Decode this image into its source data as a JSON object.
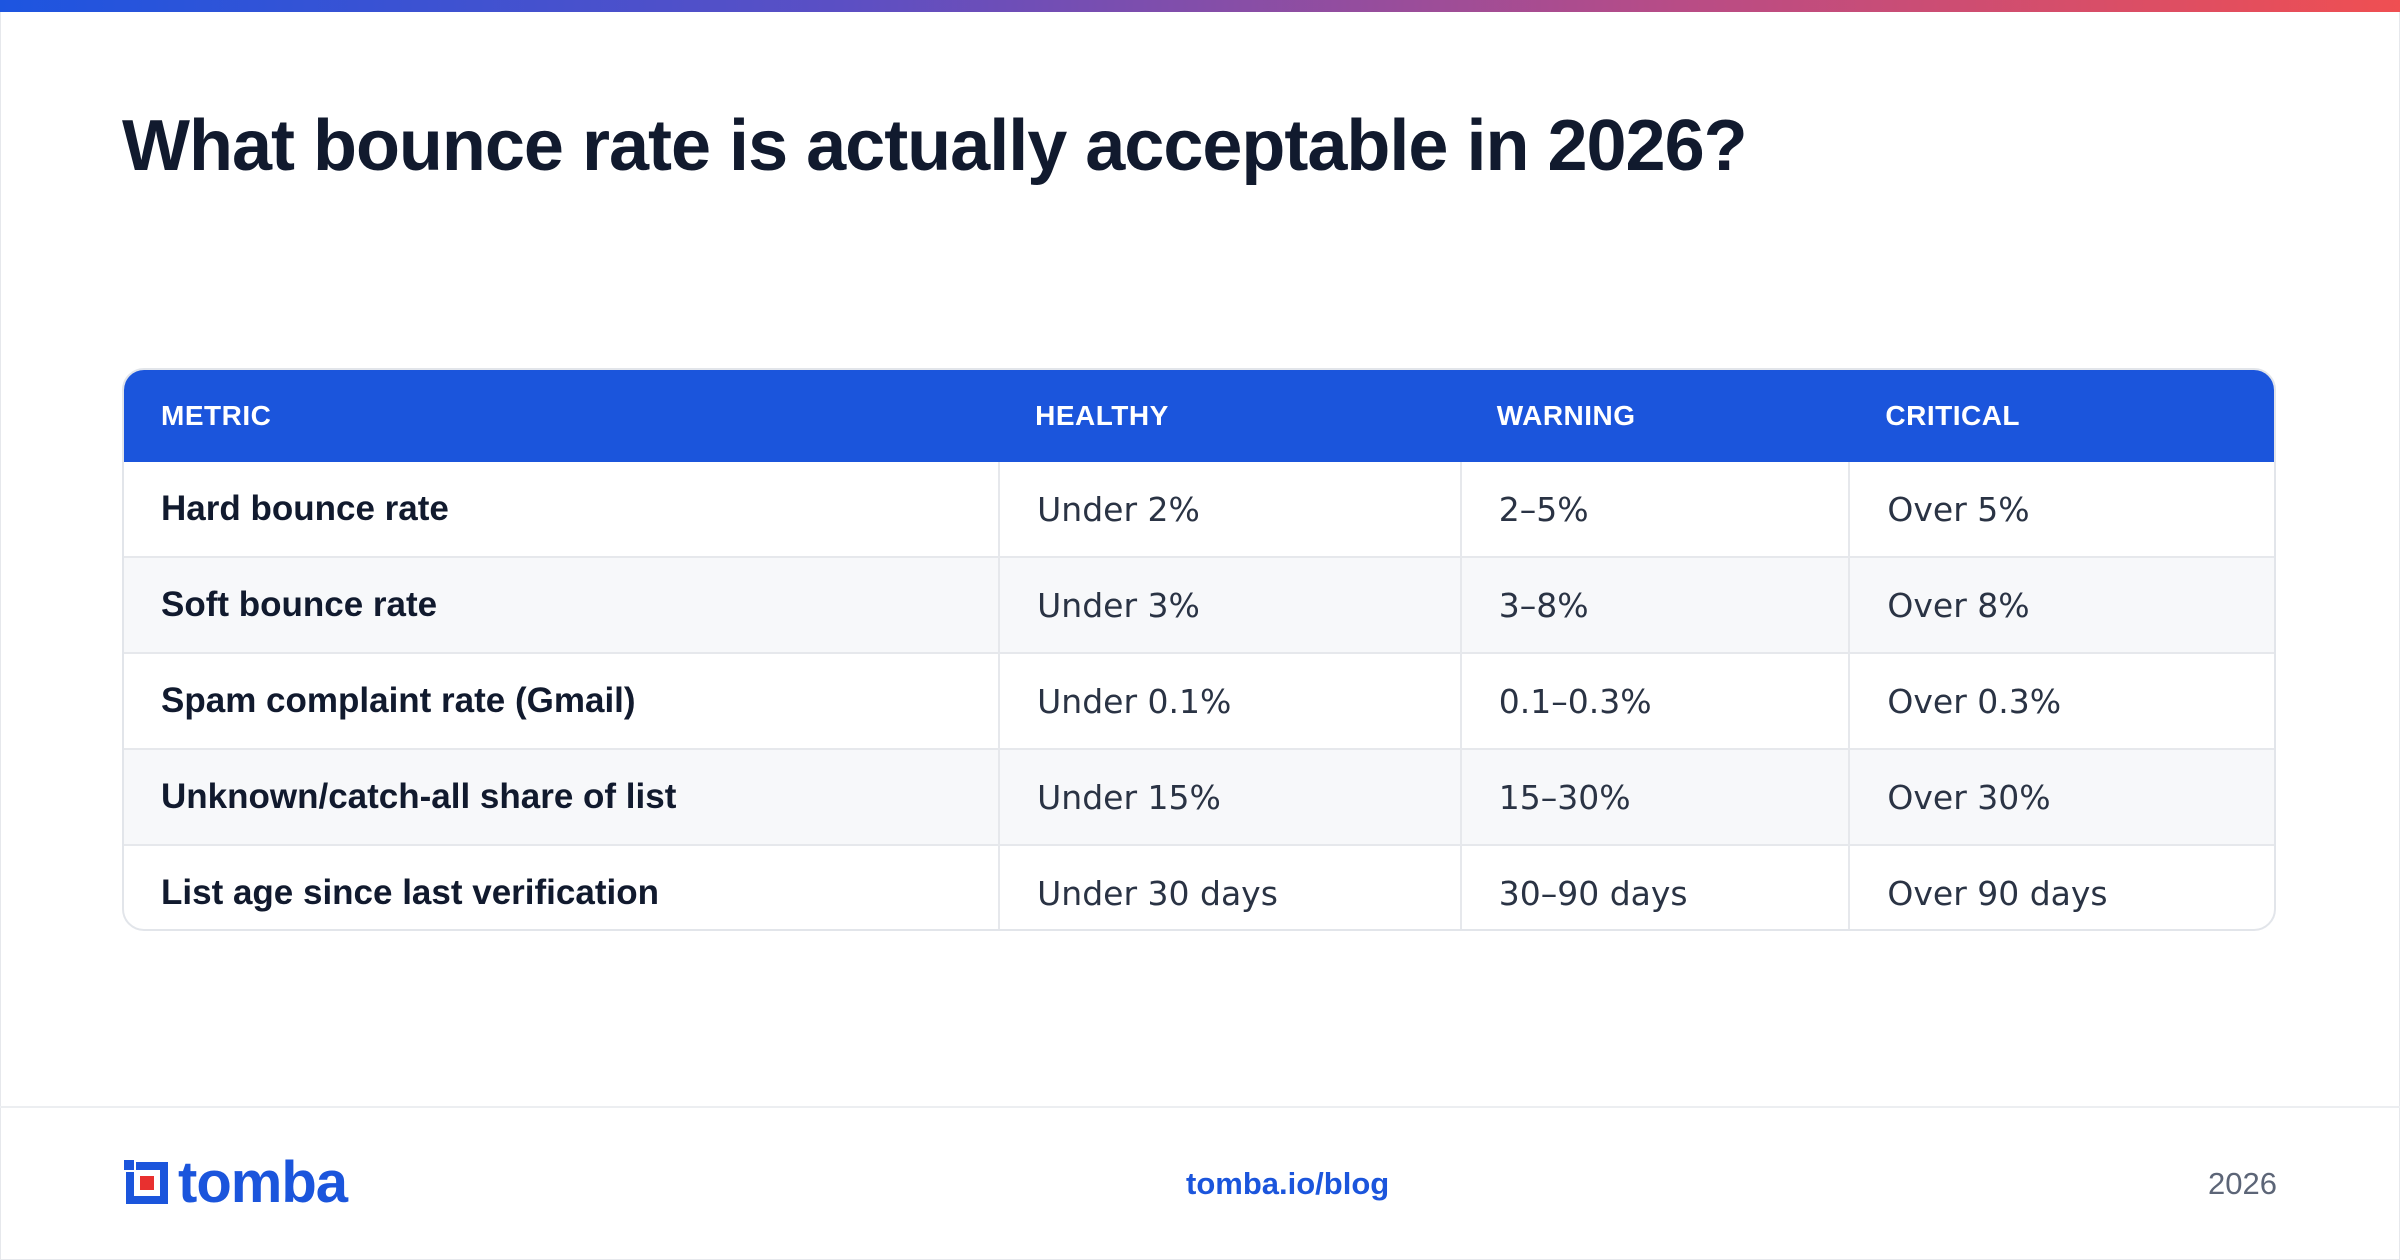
{
  "title": "What bounce rate is actually acceptable in 2026?",
  "table": {
    "headers": [
      "METRIC",
      "HEALTHY",
      "WARNING",
      "CRITICAL"
    ],
    "rows": [
      [
        "Hard bounce rate",
        "Under 2%",
        "2–5%",
        "Over 5%"
      ],
      [
        "Soft bounce rate",
        "Under 3%",
        "3–8%",
        "Over 8%"
      ],
      [
        "Spam complaint rate (Gmail)",
        "Under 0.1%",
        "0.1–0.3%",
        "Over 0.3%"
      ],
      [
        "Unknown/catch-all share of list",
        "Under 15%",
        "15–30%",
        "Over 30%"
      ],
      [
        "List age since last verification",
        "Under 30 days",
        "30–90 days",
        "Over 90 days"
      ]
    ]
  },
  "footer": {
    "logo_text": "tomba",
    "url": "tomba.io/blog",
    "year": "2026"
  },
  "colors": {
    "accent": "#1b55dc",
    "logo_red": "#e8302f",
    "title": "#111a2e"
  }
}
